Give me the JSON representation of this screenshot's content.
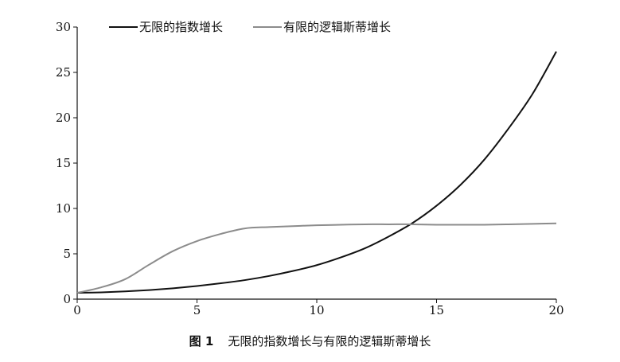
{
  "caption": {
    "figure_number": "图 1",
    "text": "无限的指数增长与有限的逻辑斯蒂增长"
  },
  "chart_data": {
    "type": "line",
    "title": "",
    "xlabel": "",
    "ylabel": "",
    "xlim": [
      0,
      20
    ],
    "ylim": [
      0,
      30
    ],
    "x_ticks": [
      0,
      5,
      10,
      15,
      20
    ],
    "y_ticks": [
      0,
      5,
      10,
      15,
      20,
      25,
      30
    ],
    "grid": false,
    "legend_position": "top",
    "x": [
      0,
      1,
      2,
      3,
      4,
      5,
      6,
      7,
      8,
      9,
      10,
      11,
      12,
      13,
      14,
      15,
      16,
      17,
      18,
      19,
      20
    ],
    "series": [
      {
        "name": "无限的指数增长",
        "color": "#111111",
        "values": [
          0.7,
          0.75,
          0.85,
          1.0,
          1.2,
          1.45,
          1.75,
          2.1,
          2.55,
          3.1,
          3.75,
          4.6,
          5.6,
          6.9,
          8.4,
          10.3,
          12.6,
          15.4,
          18.8,
          22.6,
          27.3
        ]
      },
      {
        "name": "有限的逻辑斯蒂增长",
        "color": "#8c8c8c",
        "values": [
          0.7,
          1.3,
          2.2,
          3.8,
          5.3,
          6.4,
          7.2,
          7.8,
          7.95,
          8.05,
          8.15,
          8.2,
          8.25,
          8.25,
          8.25,
          8.2,
          8.2,
          8.2,
          8.25,
          8.3,
          8.35
        ]
      }
    ]
  }
}
